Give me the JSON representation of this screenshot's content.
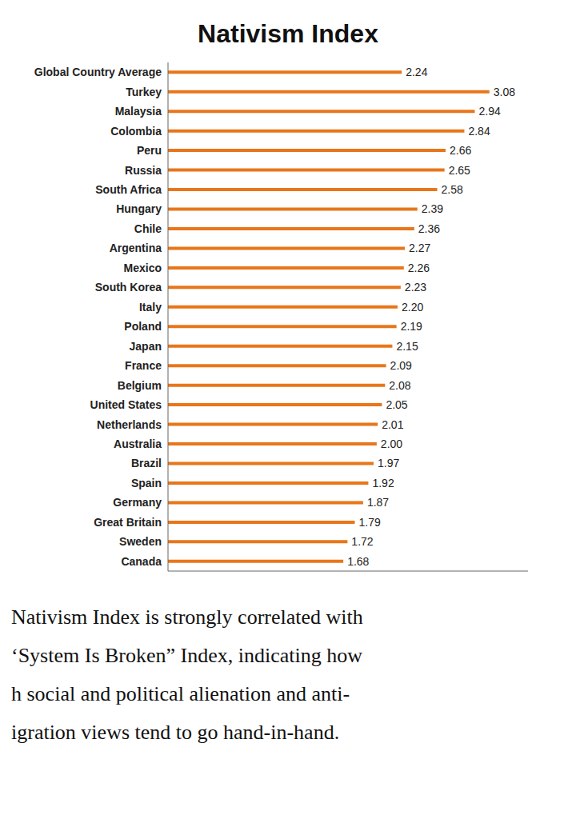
{
  "chart_data": {
    "type": "bar",
    "title": "Nativism Index",
    "orientation": "horizontal",
    "categories": [
      "Global Country Average",
      "Turkey",
      "Malaysia",
      "Colombia",
      "Peru",
      "Russia",
      "South Africa",
      "Hungary",
      "Chile",
      "Argentina",
      "Mexico",
      "South Korea",
      "Italy",
      "Poland",
      "Japan",
      "France",
      "Belgium",
      "United States",
      "Netherlands",
      "Australia",
      "Brazil",
      "Spain",
      "Germany",
      "Great Britain",
      "Sweden",
      "Canada"
    ],
    "values": [
      2.24,
      3.08,
      2.94,
      2.84,
      2.66,
      2.65,
      2.58,
      2.39,
      2.36,
      2.27,
      2.26,
      2.23,
      2.2,
      2.19,
      2.15,
      2.09,
      2.08,
      2.05,
      2.01,
      2.0,
      1.97,
      1.92,
      1.87,
      1.79,
      1.72,
      1.68
    ],
    "value_labels": [
      "2.24",
      "3.08",
      "2.94",
      "2.84",
      "2.66",
      "2.65",
      "2.58",
      "2.39",
      "2.36",
      "2.27",
      "2.26",
      "2.23",
      "2.20",
      "2.19",
      "2.15",
      "2.09",
      "2.08",
      "2.05",
      "2.01",
      "2.00",
      "1.97",
      "1.92",
      "1.87",
      "1.79",
      "1.72",
      "1.68"
    ],
    "color": "#E8761A",
    "xlim": [
      0,
      3.45
    ],
    "grid": false,
    "data_labels": true,
    "tick_labels": "y",
    "annotations": [
      "Nativism Index is strongly correlated with",
      "‘System Is Broken” Index, indicating how",
      "h social and political alienation and anti-",
      "igration views tend to go hand-in-hand."
    ]
  }
}
